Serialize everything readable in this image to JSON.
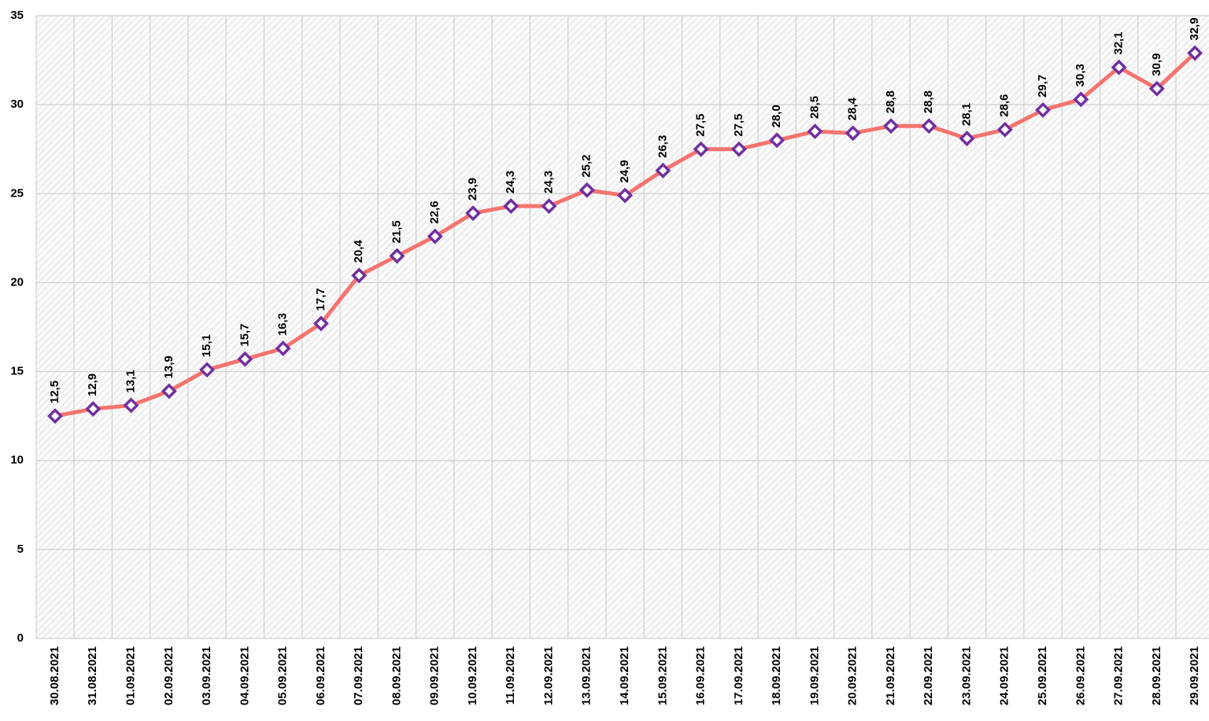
{
  "chart_data": {
    "type": "line",
    "categories": [
      "30.08.2021",
      "31.08.2021",
      "01.09.2021",
      "02.09.2021",
      "03.09.2021",
      "04.09.2021",
      "05.09.2021",
      "06.09.2021",
      "07.09.2021",
      "08.09.2021",
      "09.09.2021",
      "10.09.2021",
      "11.09.2021",
      "12.09.2021",
      "13.09.2021",
      "14.09.2021",
      "15.09.2021",
      "16.09.2021",
      "17.09.2021",
      "18.09.2021",
      "19.09.2021",
      "20.09.2021",
      "21.09.2021",
      "22.09.2021",
      "23.09.2021",
      "24.09.2021",
      "25.09.2021",
      "26.09.2021",
      "27.09.2021",
      "28.09.2021",
      "29.09.2021"
    ],
    "series": [
      {
        "color": "#f4736e",
        "marker_color": "#7030a0",
        "values": [
          12.5,
          12.9,
          13.1,
          13.9,
          15.1,
          15.7,
          16.3,
          17.7,
          20.4,
          21.5,
          22.6,
          23.9,
          24.3,
          24.3,
          25.2,
          24.9,
          26.3,
          27.5,
          27.5,
          28.0,
          28.5,
          28.4,
          28.8,
          28.8,
          28.1,
          28.6,
          29.7,
          30.3,
          32.1,
          30.9,
          32.9
        ],
        "value_labels": [
          "12,5",
          "12,9",
          "13,1",
          "13,9",
          "15,1",
          "15,7",
          "16,3",
          "17,7",
          "20,4",
          "21,5",
          "22,6",
          "23,9",
          "24,3",
          "24,3",
          "25,2",
          "24,9",
          "26,3",
          "27,5",
          "27,5",
          "28,0",
          "28,5",
          "28,4",
          "28,8",
          "28,8",
          "28,1",
          "28,6",
          "29,7",
          "30,3",
          "32,1",
          "30,9",
          "32,9"
        ]
      }
    ],
    "ylim": [
      0,
      35
    ],
    "yticks": [
      0,
      5,
      10,
      15,
      20,
      25,
      30,
      35
    ],
    "grid": true
  }
}
